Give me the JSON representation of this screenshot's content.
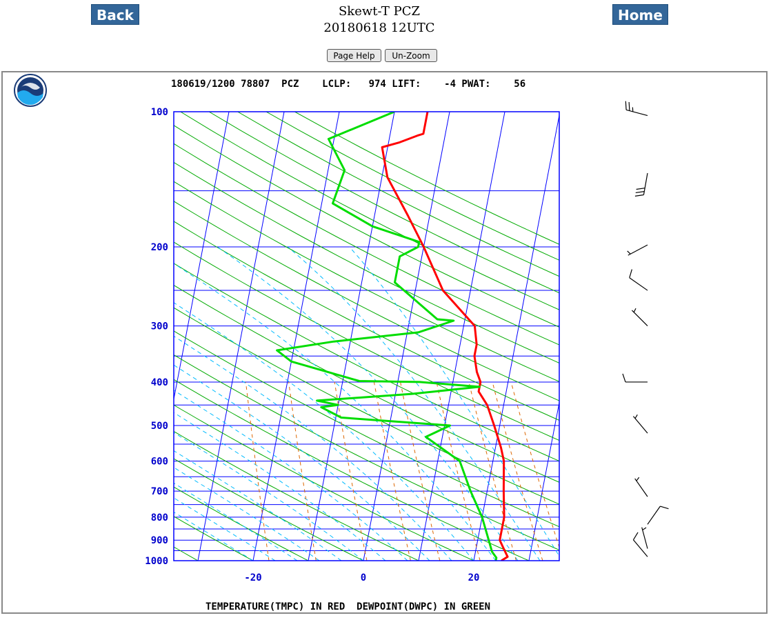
{
  "nav": {
    "back_label": "Back",
    "home_label": "Home"
  },
  "header": {
    "title_line1": "Skewt-T PCZ",
    "title_line2": "20180618 12UTC"
  },
  "controls": {
    "help_label": "Page Help",
    "unzoom_label": "Un-Zoom"
  },
  "chart_data": {
    "type": "line",
    "header_text": "180619/1200 78807  PCZ    LCLP:   974 LIFT:    -4 PWAT:    56",
    "xlabel_text": "TEMPERATURE(TMPC) IN RED  DEWPOINT(DWPC) IN GREEN",
    "x_ticks": [
      -20,
      0,
      20
    ],
    "y_ticks": [
      100,
      200,
      300,
      400,
      500,
      600,
      700,
      800,
      900,
      1000
    ],
    "series": [
      {
        "color": "#ff0000",
        "points": [
          [
            1000,
            25
          ],
          [
            980,
            26
          ],
          [
            940,
            25
          ],
          [
            900,
            24
          ],
          [
            800,
            24
          ],
          [
            700,
            23
          ],
          [
            600,
            22
          ],
          [
            560,
            21
          ],
          [
            500,
            19
          ],
          [
            450,
            17
          ],
          [
            420,
            15
          ],
          [
            400,
            15
          ],
          [
            380,
            14
          ],
          [
            350,
            13
          ],
          [
            330,
            13
          ],
          [
            300,
            12
          ],
          [
            250,
            5
          ],
          [
            200,
            0
          ],
          [
            170,
            -4
          ],
          [
            140,
            -9
          ],
          [
            120,
            -11
          ],
          [
            117,
            -8
          ],
          [
            113,
            -5
          ],
          [
            112,
            -4
          ],
          [
            104,
            -4
          ],
          [
            100,
            -4
          ]
        ]
      },
      {
        "color": "#00dd00",
        "points": [
          [
            1000,
            24
          ],
          [
            985,
            24
          ],
          [
            955,
            23
          ],
          [
            900,
            22
          ],
          [
            800,
            20
          ],
          [
            700,
            17
          ],
          [
            600,
            14
          ],
          [
            530,
            7
          ],
          [
            500,
            11
          ],
          [
            480,
            -9
          ],
          [
            455,
            -13
          ],
          [
            450,
            -10
          ],
          [
            440,
            -14
          ],
          [
            425,
            3
          ],
          [
            410,
            15
          ],
          [
            400,
            4
          ],
          [
            398,
            -7
          ],
          [
            360,
            -20
          ],
          [
            340,
            -23
          ],
          [
            325,
            -13
          ],
          [
            310,
            2
          ],
          [
            292,
            8
          ],
          [
            290,
            5
          ],
          [
            240,
            -4
          ],
          [
            210,
            -4
          ],
          [
            200,
            -1
          ],
          [
            195,
            -1
          ],
          [
            180,
            -10
          ],
          [
            160,
            -18
          ],
          [
            135,
            -17
          ],
          [
            115,
            -21
          ],
          [
            100,
            -10
          ]
        ]
      }
    ],
    "wind_barbs": [
      {
        "pressure": 102,
        "direction_deg": 285,
        "speed_kt": 25
      },
      {
        "pressure": 137,
        "direction_deg": 190,
        "speed_kt": 30
      },
      {
        "pressure": 198,
        "direction_deg": 242,
        "speed_kt": 5
      },
      {
        "pressure": 250,
        "direction_deg": 305,
        "speed_kt": 10
      },
      {
        "pressure": 300,
        "direction_deg": 315,
        "speed_kt": 5
      },
      {
        "pressure": 400,
        "direction_deg": 270,
        "speed_kt": 10
      },
      {
        "pressure": 520,
        "direction_deg": 320,
        "speed_kt": 5
      },
      {
        "pressure": 720,
        "direction_deg": 325,
        "speed_kt": 5
      },
      {
        "pressure": 830,
        "direction_deg": 35,
        "speed_kt": 10
      },
      {
        "pressure": 940,
        "direction_deg": 345,
        "speed_kt": 5
      },
      {
        "pressure": 980,
        "direction_deg": 320,
        "speed_kt": 10
      }
    ],
    "colors": {
      "isobar": "#0000ff",
      "axis_text": "#0000cc",
      "dry_adiabat": "#00aa00",
      "moist_adiabat": "#00bbff",
      "mixing_ratio": "#dd6600"
    }
  }
}
